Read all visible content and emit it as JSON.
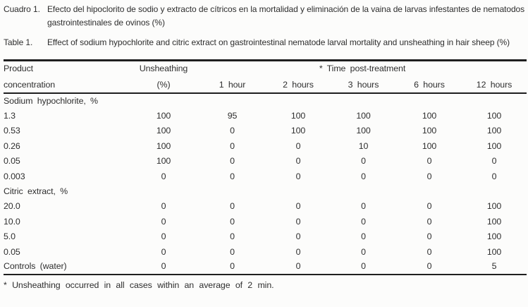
{
  "page": {
    "background": "#fcfcfb",
    "text_color": "#2e2e2e",
    "rule_color": "#1f1f1f"
  },
  "titles": {
    "spanish": {
      "label": "Cuadro 1.",
      "text": "Efecto del hipoclorito de sodio y extracto de cítricos en la mortalidad y eliminación de la vaina de larvas infestantes de nematodos gastrointestinales de ovinos (%)"
    },
    "english": {
      "label": "Table 1.",
      "text": "Effect of sodium hypochlorite and citric extract on gastrointestinal nematode larval mortality and unsheathing in hair sheep (%)"
    }
  },
  "table": {
    "header": {
      "col1_line1": "Product",
      "col1_line2": "concentration",
      "col2_line1": "Unsheathing",
      "col2_line2": "(%)",
      "span_label": "* Time post-treatment",
      "time_cols": [
        "1 hour",
        "2 hours",
        "3 hours",
        "6 hours",
        "12 hours"
      ]
    },
    "sections": [
      {
        "header": "Sodium hypochlorite, %",
        "rows": [
          {
            "label": "1.3",
            "values": [
              "100",
              "95",
              "100",
              "100",
              "100",
              "100"
            ]
          },
          {
            "label": "0.53",
            "values": [
              "100",
              "0",
              "100",
              "100",
              "100",
              "100"
            ]
          },
          {
            "label": "0.26",
            "values": [
              "100",
              "0",
              "0",
              "10",
              "100",
              "100"
            ]
          },
          {
            "label": "0.05",
            "values": [
              "100",
              "0",
              "0",
              "0",
              "0",
              "0"
            ]
          },
          {
            "label": "0.003",
            "values": [
              "0",
              "0",
              "0",
              "0",
              "0",
              "0"
            ]
          }
        ]
      },
      {
        "header": "Citric extract, %",
        "rows": [
          {
            "label": "20.0",
            "values": [
              "0",
              "0",
              "0",
              "0",
              "0",
              "100"
            ]
          },
          {
            "label": "10.0",
            "values": [
              "0",
              "0",
              "0",
              "0",
              "0",
              "100"
            ]
          },
          {
            "label": "5.0",
            "values": [
              "0",
              "0",
              "0",
              "0",
              "0",
              "100"
            ]
          },
          {
            "label": "0.05",
            "values": [
              "0",
              "0",
              "0",
              "0",
              "0",
              "100"
            ]
          }
        ]
      },
      {
        "header": null,
        "rows": [
          {
            "label": "Controls (water)",
            "values": [
              "0",
              "0",
              "0",
              "0",
              "0",
              "5"
            ]
          }
        ]
      }
    ],
    "footnote": "* Unsheathing occurred in all cases within an average of 2 min."
  }
}
